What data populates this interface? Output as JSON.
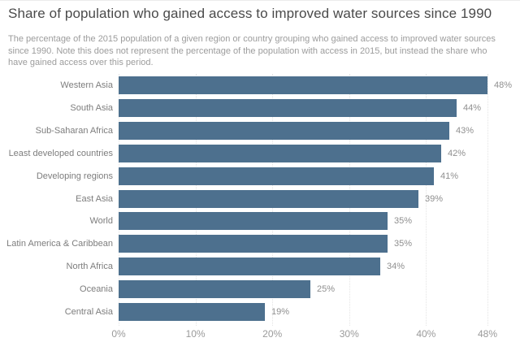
{
  "header": {
    "title": "Share of population who gained access to improved water sources since 1990",
    "subtitle": "The percentage of the 2015 population of a given region or country grouping who gained access to improved water sources since 1990. Note this does not represent the percentage of the population with access in 2015, but instead the share who have gained access over this period."
  },
  "chart_data": {
    "type": "bar",
    "orientation": "horizontal",
    "title": "Share of population who gained access to improved water sources since 1990",
    "categories": [
      "Western Asia",
      "South Asia",
      "Sub-Saharan Africa",
      "Least developed countries",
      "Developing regions",
      "East Asia",
      "World",
      "Latin America & Caribbean",
      "North Africa",
      "Oceania",
      "Central Asia"
    ],
    "values": [
      48,
      44,
      43,
      42,
      41,
      39,
      35,
      35,
      34,
      25,
      19
    ],
    "value_labels": [
      "48%",
      "44%",
      "43%",
      "42%",
      "41%",
      "39%",
      "35%",
      "35%",
      "34%",
      "25%",
      "19%"
    ],
    "xlim": [
      0,
      48
    ],
    "xticks": [
      0,
      10,
      20,
      30,
      40,
      48
    ],
    "xtick_labels": [
      "0%",
      "10%",
      "20%",
      "30%",
      "40%",
      "48%"
    ],
    "xlabel": "",
    "ylabel": "",
    "grid": "vertical-dotted",
    "legend": "none",
    "bar_color": "#4d708e",
    "gridline_color": "#e4e4e4"
  }
}
